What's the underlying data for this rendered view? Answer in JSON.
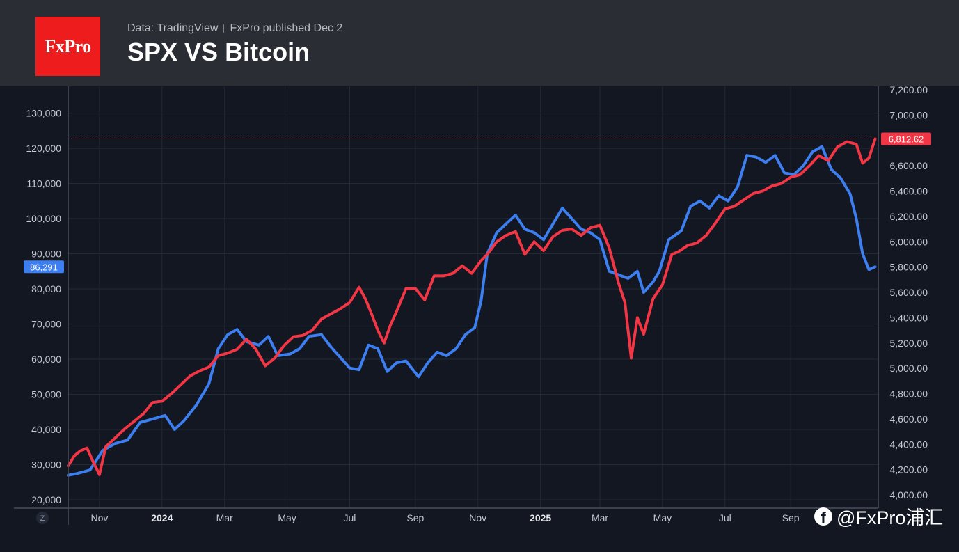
{
  "header": {
    "logo_text": "FxPro",
    "source": "Data: TradingView",
    "published": "FxPro published Dec 2",
    "title": "SPX VS Bitcoin"
  },
  "watermark": "@FxPro浦汇",
  "z_button": "Z",
  "chart_data": {
    "type": "line",
    "title": "SPX VS Bitcoin",
    "x_ticks": [
      {
        "label": "Nov",
        "t": 1.6
      },
      {
        "label": "2024",
        "t": 3.6,
        "bold": true
      },
      {
        "label": "Mar",
        "t": 5.6
      },
      {
        "label": "May",
        "t": 7.6
      },
      {
        "label": "Jul",
        "t": 9.6
      },
      {
        "label": "Sep",
        "t": 11.7
      },
      {
        "label": "Nov",
        "t": 13.7
      },
      {
        "label": "2025",
        "t": 15.7,
        "bold": true
      },
      {
        "label": "Mar",
        "t": 17.6
      },
      {
        "label": "May",
        "t": 19.6
      },
      {
        "label": "Jul",
        "t": 21.6
      },
      {
        "label": "Sep",
        "t": 23.7
      }
    ],
    "x_range": [
      0.6,
      26.5
    ],
    "left_axis": {
      "ticks": [
        20000,
        30000,
        40000,
        50000,
        60000,
        70000,
        80000,
        90000,
        100000,
        110000,
        120000,
        130000
      ],
      "tick_labels": [
        "20,000",
        "30,000",
        "40,000",
        "50,000",
        "60,000",
        "70,000",
        "80,000",
        "90,000",
        "100,000",
        "110,000",
        "120,000",
        "130,000"
      ],
      "range": [
        20000,
        131500
      ]
    },
    "right_axis": {
      "ticks": [
        4000,
        4200,
        4400,
        4600,
        4800,
        5000,
        5200,
        5400,
        5600,
        5800,
        6000,
        6200,
        6400,
        6600,
        6800,
        7000,
        7200
      ],
      "tick_labels": [
        "4,000.00",
        "4,200.00",
        "4,400.00",
        "4,600.00",
        "4,800.00",
        "5,000.00",
        "5,200.00",
        "5,400.00",
        "5,600.00",
        "5,800.00",
        "6,000.00",
        "6,200.00",
        "6,400.00",
        "6,600.00",
        "6,800.00",
        "7,000.00",
        "7,200.00"
      ],
      "range": [
        4000,
        7200
      ]
    },
    "series": [
      {
        "name": "Bitcoin",
        "axis": "left",
        "color": "#3d7ef0",
        "last_label": "86,291",
        "points": [
          [
            0.6,
            27000
          ],
          [
            0.9,
            27500
          ],
          [
            1.3,
            28500
          ],
          [
            1.7,
            34000
          ],
          [
            2.1,
            36000
          ],
          [
            2.5,
            37000
          ],
          [
            2.9,
            42000
          ],
          [
            3.3,
            43000
          ],
          [
            3.7,
            44000
          ],
          [
            4.0,
            40000
          ],
          [
            4.3,
            42500
          ],
          [
            4.7,
            47000
          ],
          [
            5.1,
            53000
          ],
          [
            5.4,
            63000
          ],
          [
            5.7,
            67000
          ],
          [
            6.0,
            68500
          ],
          [
            6.3,
            65000
          ],
          [
            6.7,
            64000
          ],
          [
            7.0,
            66500
          ],
          [
            7.3,
            61000
          ],
          [
            7.7,
            61500
          ],
          [
            8.0,
            63000
          ],
          [
            8.3,
            66500
          ],
          [
            8.7,
            67000
          ],
          [
            9.0,
            63500
          ],
          [
            9.3,
            60500
          ],
          [
            9.6,
            57500
          ],
          [
            9.9,
            57000
          ],
          [
            10.2,
            64000
          ],
          [
            10.5,
            63000
          ],
          [
            10.8,
            56500
          ],
          [
            11.1,
            59000
          ],
          [
            11.4,
            59500
          ],
          [
            11.8,
            55000
          ],
          [
            12.1,
            59000
          ],
          [
            12.4,
            62000
          ],
          [
            12.7,
            61000
          ],
          [
            13.0,
            63000
          ],
          [
            13.3,
            67000
          ],
          [
            13.6,
            69000
          ],
          [
            13.8,
            76500
          ],
          [
            14.0,
            90000
          ],
          [
            14.3,
            96000
          ],
          [
            14.6,
            98500
          ],
          [
            14.9,
            101000
          ],
          [
            15.2,
            97000
          ],
          [
            15.5,
            96000
          ],
          [
            15.8,
            94000
          ],
          [
            16.1,
            98500
          ],
          [
            16.4,
            103000
          ],
          [
            16.7,
            100000
          ],
          [
            17.0,
            97000
          ],
          [
            17.3,
            96000
          ],
          [
            17.6,
            94000
          ],
          [
            17.9,
            85000
          ],
          [
            18.2,
            84000
          ],
          [
            18.5,
            83000
          ],
          [
            18.8,
            85000
          ],
          [
            19.0,
            79000
          ],
          [
            19.3,
            82000
          ],
          [
            19.5,
            85000
          ],
          [
            19.8,
            94000
          ],
          [
            20.2,
            96500
          ],
          [
            20.5,
            103500
          ],
          [
            20.8,
            105000
          ],
          [
            21.1,
            103000
          ],
          [
            21.4,
            106500
          ],
          [
            21.7,
            105000
          ],
          [
            22.0,
            109000
          ],
          [
            22.3,
            118000
          ],
          [
            22.6,
            117500
          ],
          [
            22.9,
            116000
          ],
          [
            23.2,
            118000
          ],
          [
            23.5,
            113000
          ],
          [
            23.8,
            112500
          ],
          [
            24.1,
            115000
          ],
          [
            24.4,
            119000
          ],
          [
            24.7,
            120500
          ],
          [
            25.0,
            114000
          ],
          [
            25.3,
            111500
          ],
          [
            25.6,
            107000
          ],
          [
            25.8,
            100000
          ],
          [
            26.0,
            90000
          ],
          [
            26.2,
            85500
          ],
          [
            26.4,
            86291
          ]
        ]
      },
      {
        "name": "SPX",
        "axis": "right",
        "color": "#f23645",
        "last_label": "6,812.62",
        "points": [
          [
            0.6,
            4230
          ],
          [
            0.8,
            4310
          ],
          [
            1.0,
            4350
          ],
          [
            1.2,
            4370
          ],
          [
            1.4,
            4260
          ],
          [
            1.6,
            4160
          ],
          [
            1.8,
            4380
          ],
          [
            2.1,
            4450
          ],
          [
            2.4,
            4520
          ],
          [
            2.7,
            4580
          ],
          [
            3.0,
            4640
          ],
          [
            3.3,
            4730
          ],
          [
            3.6,
            4740
          ],
          [
            3.9,
            4800
          ],
          [
            4.2,
            4870
          ],
          [
            4.5,
            4940
          ],
          [
            4.8,
            4980
          ],
          [
            5.1,
            5010
          ],
          [
            5.4,
            5100
          ],
          [
            5.7,
            5120
          ],
          [
            6.0,
            5150
          ],
          [
            6.3,
            5230
          ],
          [
            6.6,
            5150
          ],
          [
            6.9,
            5020
          ],
          [
            7.2,
            5080
          ],
          [
            7.5,
            5180
          ],
          [
            7.8,
            5250
          ],
          [
            8.1,
            5260
          ],
          [
            8.4,
            5300
          ],
          [
            8.7,
            5390
          ],
          [
            9.0,
            5430
          ],
          [
            9.3,
            5470
          ],
          [
            9.6,
            5520
          ],
          [
            9.9,
            5640
          ],
          [
            10.1,
            5550
          ],
          [
            10.3,
            5430
          ],
          [
            10.5,
            5300
          ],
          [
            10.7,
            5200
          ],
          [
            10.9,
            5340
          ],
          [
            11.1,
            5450
          ],
          [
            11.4,
            5630
          ],
          [
            11.7,
            5630
          ],
          [
            12.0,
            5540
          ],
          [
            12.3,
            5730
          ],
          [
            12.6,
            5730
          ],
          [
            12.9,
            5750
          ],
          [
            13.2,
            5810
          ],
          [
            13.5,
            5750
          ],
          [
            13.8,
            5850
          ],
          [
            14.0,
            5900
          ],
          [
            14.3,
            6000
          ],
          [
            14.6,
            6050
          ],
          [
            14.9,
            6080
          ],
          [
            15.2,
            5900
          ],
          [
            15.5,
            6000
          ],
          [
            15.8,
            5930
          ],
          [
            16.1,
            6040
          ],
          [
            16.4,
            6090
          ],
          [
            16.7,
            6100
          ],
          [
            17.0,
            6050
          ],
          [
            17.3,
            6110
          ],
          [
            17.6,
            6130
          ],
          [
            17.9,
            5950
          ],
          [
            18.2,
            5670
          ],
          [
            18.4,
            5520
          ],
          [
            18.6,
            5080
          ],
          [
            18.8,
            5400
          ],
          [
            19.0,
            5270
          ],
          [
            19.3,
            5550
          ],
          [
            19.6,
            5660
          ],
          [
            19.9,
            5900
          ],
          [
            20.1,
            5920
          ],
          [
            20.4,
            5970
          ],
          [
            20.7,
            5990
          ],
          [
            21.0,
            6050
          ],
          [
            21.3,
            6150
          ],
          [
            21.6,
            6260
          ],
          [
            21.9,
            6280
          ],
          [
            22.2,
            6330
          ],
          [
            22.5,
            6380
          ],
          [
            22.8,
            6400
          ],
          [
            23.1,
            6440
          ],
          [
            23.4,
            6460
          ],
          [
            23.7,
            6510
          ],
          [
            24.0,
            6530
          ],
          [
            24.3,
            6600
          ],
          [
            24.6,
            6680
          ],
          [
            24.9,
            6640
          ],
          [
            25.2,
            6750
          ],
          [
            25.5,
            6790
          ],
          [
            25.8,
            6770
          ],
          [
            26.0,
            6620
          ],
          [
            26.2,
            6660
          ],
          [
            26.4,
            6812.62
          ]
        ]
      }
    ],
    "last_value_line": {
      "series": "SPX",
      "value": 6812.62,
      "style": "dotted"
    }
  }
}
